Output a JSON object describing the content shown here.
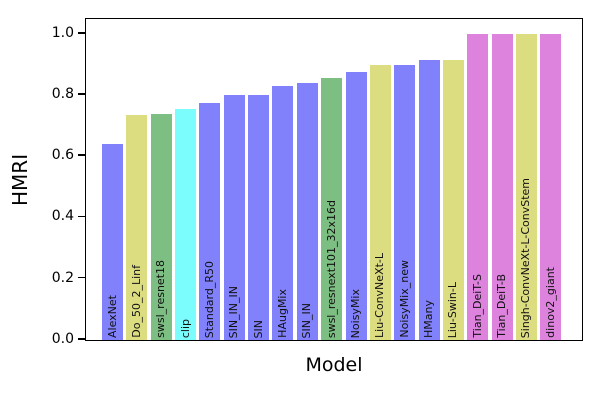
{
  "chart_data": {
    "type": "bar",
    "title": "",
    "xlabel": "Model",
    "ylabel": "HMRI",
    "ylim": [
      0.0,
      1.06
    ],
    "yticks": [
      0.0,
      0.2,
      0.4,
      0.6,
      0.8,
      1.0
    ],
    "ytick_labels": [
      "0.0",
      "0.2",
      "0.4",
      "0.6",
      "0.8",
      "1.0"
    ],
    "grid": false,
    "legend": null,
    "bar_label_position": "inside-bottom",
    "bar_label_rotation": 90,
    "palette": {
      "blue": "#8181fb",
      "khaki": "#dcdc81",
      "green": "#7dbe83",
      "cyan": "#7bfdfe",
      "violet": "#dd83de"
    },
    "bars": [
      {
        "label": "AlexNet",
        "value": 0.64,
        "color": "#8181fb"
      },
      {
        "label": "Do_50_2_Linf",
        "value": 0.735,
        "color": "#dcdc81"
      },
      {
        "label": "swsl_resnet18",
        "value": 0.74,
        "color": "#7dbe83"
      },
      {
        "label": "clip",
        "value": 0.755,
        "color": "#7bfdfe"
      },
      {
        "label": "Standard_R50",
        "value": 0.775,
        "color": "#8181fb"
      },
      {
        "label": "SIN_IN_IN",
        "value": 0.8,
        "color": "#8181fb"
      },
      {
        "label": "SIN",
        "value": 0.8,
        "color": "#8181fb"
      },
      {
        "label": "HAugMix",
        "value": 0.83,
        "color": "#8181fb"
      },
      {
        "label": "SIN_IN",
        "value": 0.84,
        "color": "#8181fb"
      },
      {
        "label": "swsl_resnext101_32x16d",
        "value": 0.855,
        "color": "#7dbe83"
      },
      {
        "label": "NoisyMix",
        "value": 0.875,
        "color": "#8181fb"
      },
      {
        "label": "Liu-ConvNeXt-L",
        "value": 0.9,
        "color": "#dcdc81"
      },
      {
        "label": "NoisyMix_new",
        "value": 0.9,
        "color": "#8181fb"
      },
      {
        "label": "HMany",
        "value": 0.915,
        "color": "#8181fb"
      },
      {
        "label": "Liu-Swin-L",
        "value": 0.915,
        "color": "#dcdc81"
      },
      {
        "label": "Tian_DeiT-S",
        "value": 1.0,
        "color": "#dd83de"
      },
      {
        "label": "Tian_DeiT-B",
        "value": 1.0,
        "color": "#dd83de"
      },
      {
        "label": "Singh-ConvNeXt-L-ConvStem",
        "value": 1.0,
        "color": "#dcdc81"
      },
      {
        "label": "dinov2_giant",
        "value": 1.0,
        "color": "#dd83de"
      }
    ]
  }
}
